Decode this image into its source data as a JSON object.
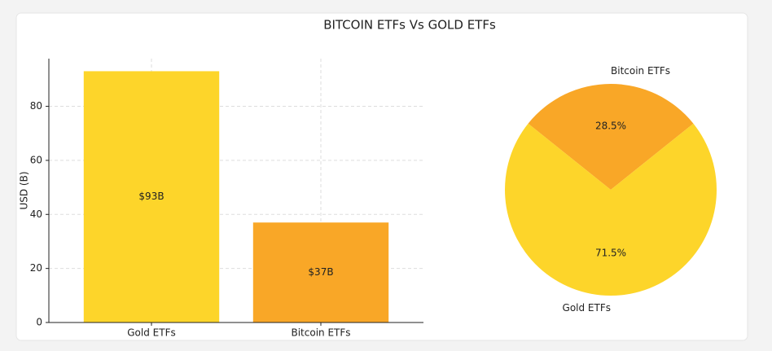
{
  "title": "BITCOIN ETFs Vs GOLD ETFs",
  "chart_data": [
    {
      "type": "bar",
      "ylabel": "USD (B)",
      "categories": [
        "Gold ETFs",
        "Bitcoin ETFs"
      ],
      "values": [
        93,
        37
      ],
      "value_labels": [
        "$93B",
        "$37B"
      ],
      "colors": [
        "#fdd52a",
        "#f9a727"
      ],
      "ylim": [
        0,
        97.65
      ],
      "yticks": [
        0,
        20,
        40,
        60,
        80
      ],
      "grid": true
    },
    {
      "type": "pie",
      "categories": [
        "Bitcoin ETFs",
        "Gold ETFs"
      ],
      "values": [
        28.5,
        71.5
      ],
      "value_labels": [
        "28.5%",
        "71.5%"
      ],
      "colors": [
        "#f9a727",
        "#fdd52a"
      ]
    }
  ]
}
